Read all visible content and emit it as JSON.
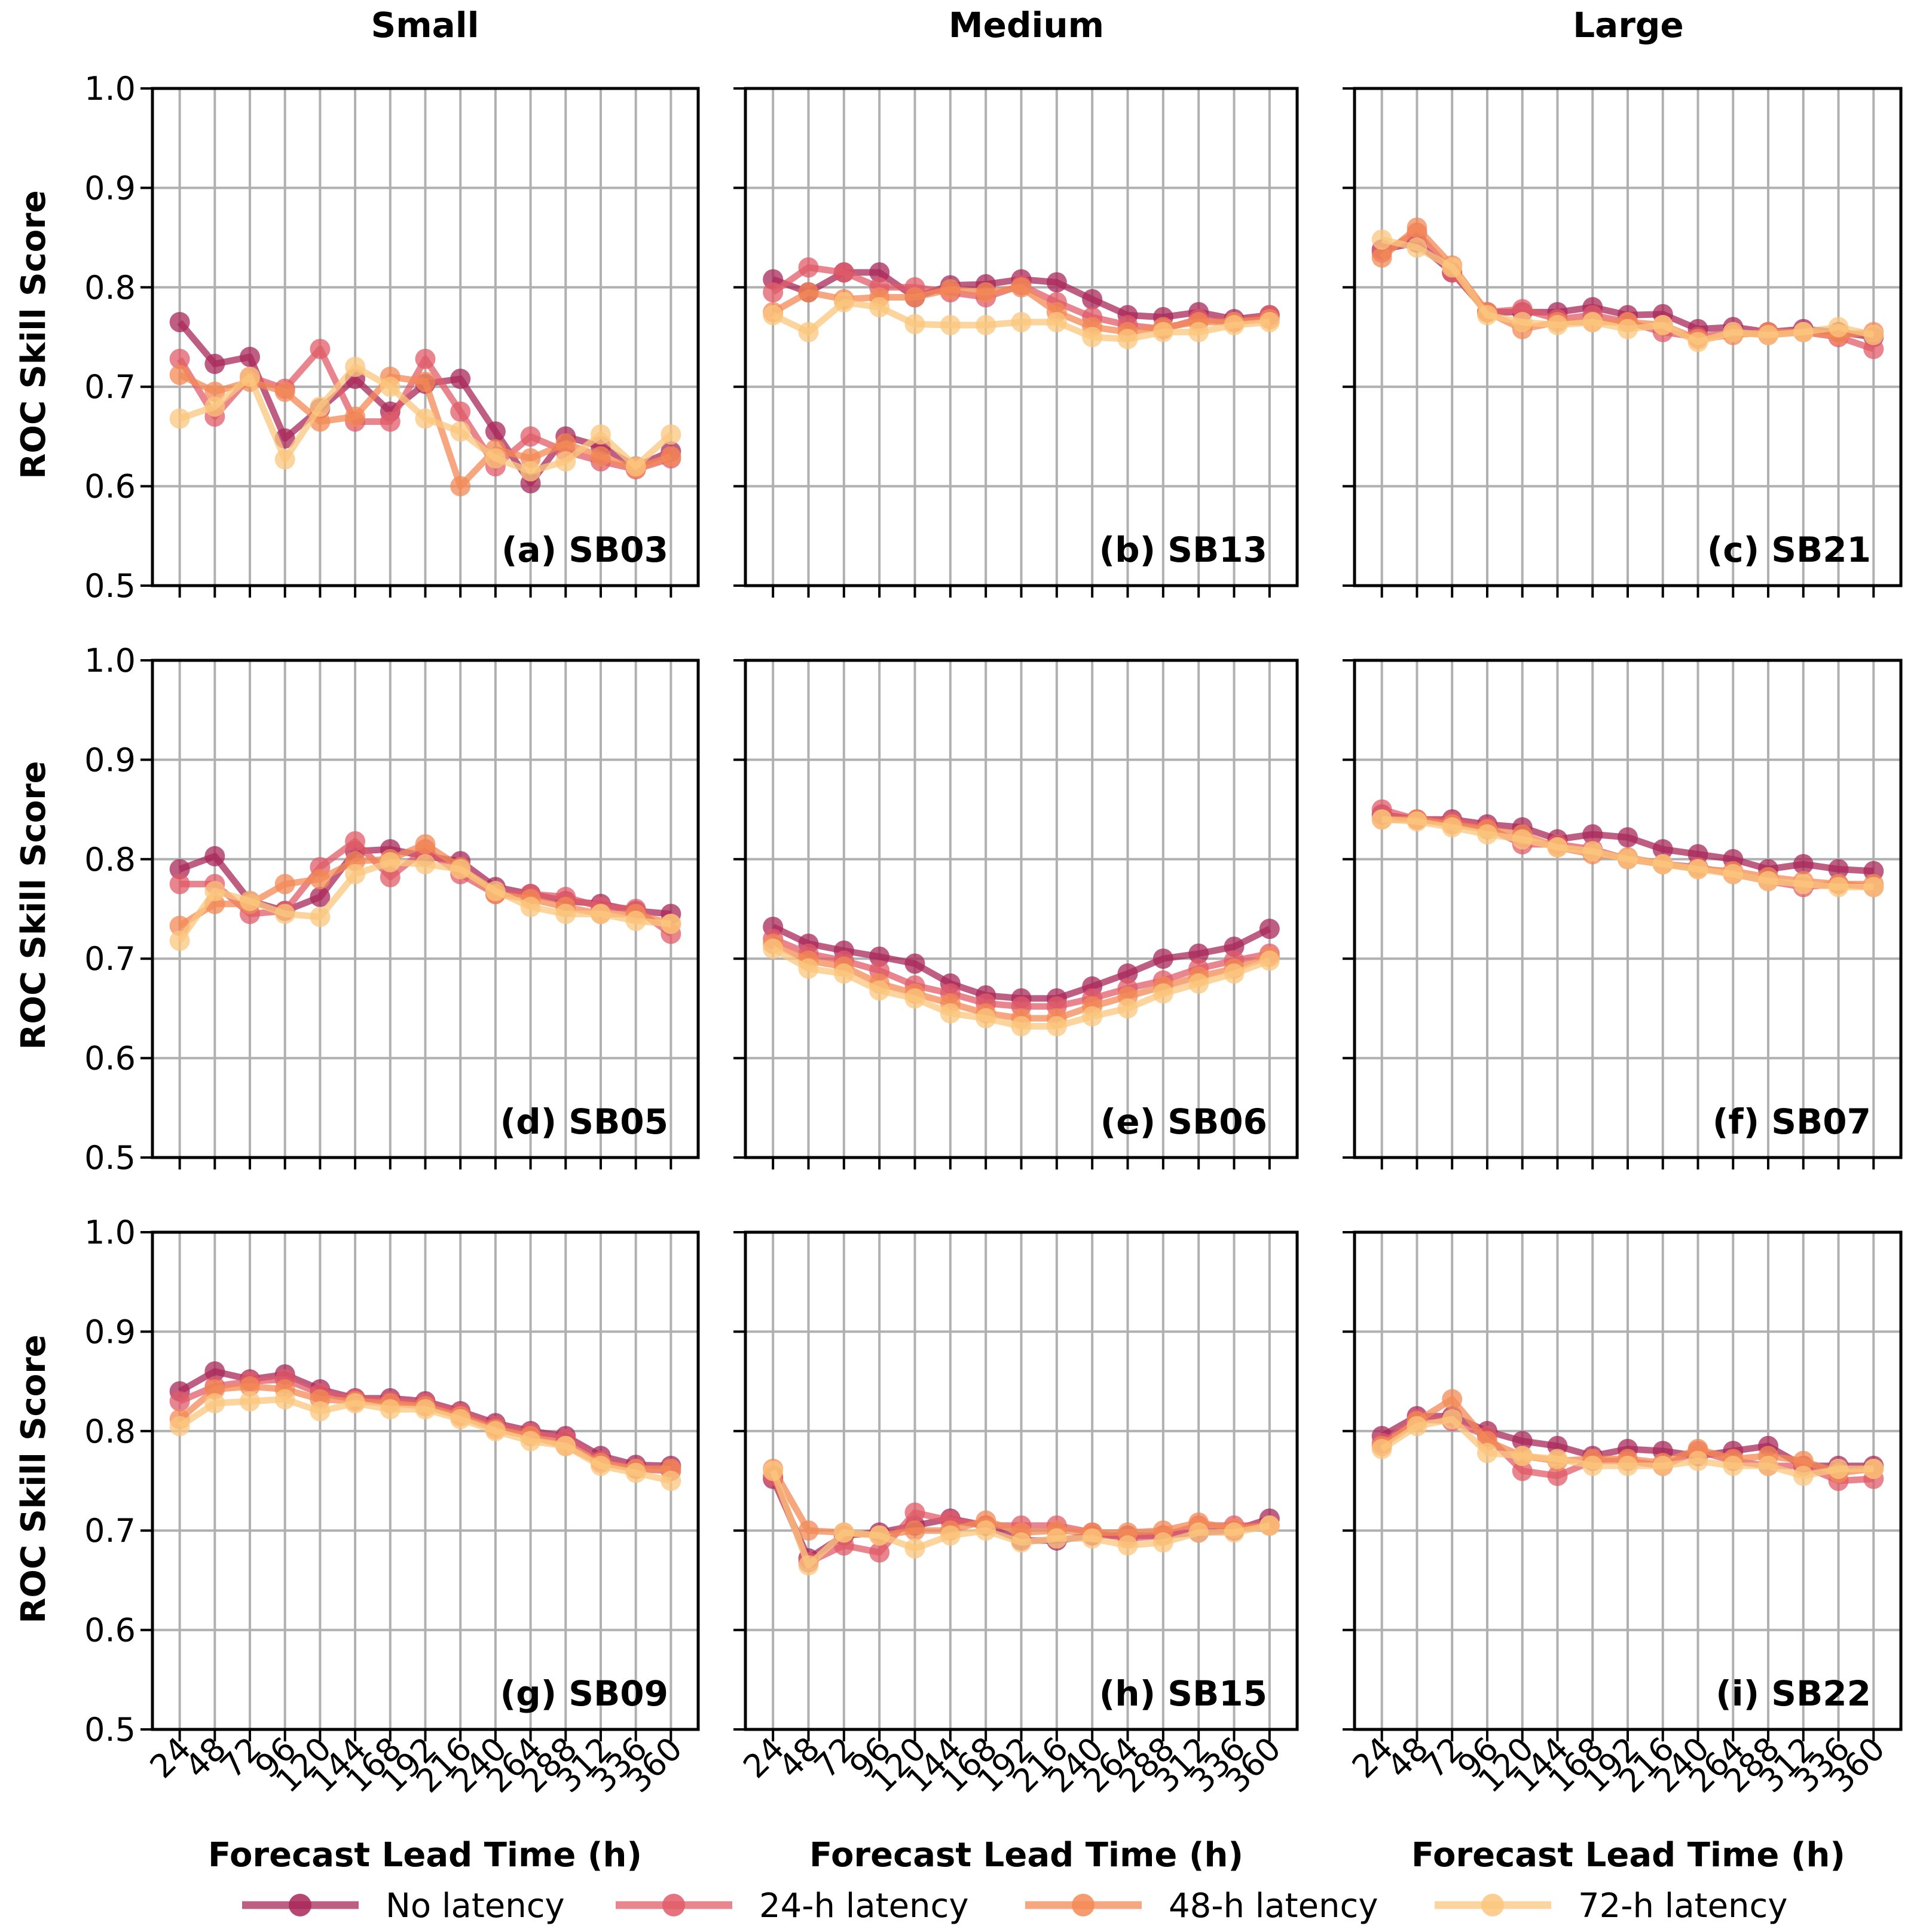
{
  "figure": {
    "column_titles": [
      "Small",
      "Medium",
      "Large"
    ],
    "ylabel": "ROC Skill Score",
    "xlabel": "Forecast Lead Time (h)"
  },
  "legend": [
    {
      "label": "No latency",
      "color": "#a8285a"
    },
    {
      "label": "24-h latency",
      "color": "#e05c68"
    },
    {
      "label": "48-h latency",
      "color": "#f38a55"
    },
    {
      "label": "72-h latency",
      "color": "#fbc77e"
    }
  ],
  "chart_data": [
    {
      "type": "line",
      "label": "(a) SB03",
      "column": "Small",
      "x": [
        24,
        48,
        72,
        96,
        120,
        144,
        168,
        192,
        216,
        240,
        264,
        288,
        312,
        336,
        360
      ],
      "ylim": [
        0.5,
        1.0
      ],
      "yticks": [
        "0.5",
        "0.6",
        "0.7",
        "0.8",
        "0.9",
        "1.0"
      ],
      "grid": true,
      "series": [
        {
          "name": "No latency",
          "values": [
            0.765,
            0.723,
            0.73,
            0.648,
            0.678,
            0.708,
            0.675,
            0.703,
            0.708,
            0.655,
            0.603,
            0.65,
            0.64,
            0.62,
            0.635
          ]
        },
        {
          "name": "24-h latency",
          "values": [
            0.728,
            0.67,
            0.71,
            0.698,
            0.738,
            0.665,
            0.665,
            0.728,
            0.675,
            0.62,
            0.65,
            0.635,
            0.625,
            0.617,
            0.628
          ]
        },
        {
          "name": "48-h latency",
          "values": [
            0.712,
            0.695,
            0.705,
            0.695,
            0.665,
            0.67,
            0.71,
            0.705,
            0.6,
            0.637,
            0.628,
            0.643,
            0.63,
            0.618,
            0.63
          ]
        },
        {
          "name": "72-h latency",
          "values": [
            0.668,
            0.68,
            0.71,
            0.627,
            0.68,
            0.72,
            0.7,
            0.668,
            0.655,
            0.628,
            0.615,
            0.625,
            0.652,
            0.62,
            0.652
          ]
        }
      ]
    },
    {
      "type": "line",
      "label": "(b) SB13",
      "column": "Medium",
      "x": [
        24,
        48,
        72,
        96,
        120,
        144,
        168,
        192,
        216,
        240,
        264,
        288,
        312,
        336,
        360
      ],
      "ylim": [
        0.5,
        1.0
      ],
      "yticks": [
        "0.5",
        "0.6",
        "0.7",
        "0.8",
        "0.9",
        "1.0"
      ],
      "grid": true,
      "series": [
        {
          "name": "No latency",
          "values": [
            0.808,
            0.795,
            0.815,
            0.815,
            0.79,
            0.802,
            0.803,
            0.808,
            0.805,
            0.788,
            0.772,
            0.77,
            0.775,
            0.768,
            0.772
          ]
        },
        {
          "name": "24-h latency",
          "values": [
            0.795,
            0.82,
            0.815,
            0.8,
            0.8,
            0.795,
            0.79,
            0.802,
            0.785,
            0.77,
            0.762,
            0.758,
            0.768,
            0.765,
            0.772
          ]
        },
        {
          "name": "48-h latency",
          "values": [
            0.775,
            0.795,
            0.788,
            0.79,
            0.79,
            0.798,
            0.795,
            0.8,
            0.775,
            0.76,
            0.755,
            0.76,
            0.765,
            0.765,
            0.768
          ]
        },
        {
          "name": "72-h latency",
          "values": [
            0.772,
            0.755,
            0.785,
            0.78,
            0.763,
            0.762,
            0.762,
            0.765,
            0.765,
            0.75,
            0.748,
            0.755,
            0.755,
            0.762,
            0.765
          ]
        }
      ]
    },
    {
      "type": "line",
      "label": "(c) SB21",
      "column": "Large",
      "x": [
        24,
        48,
        72,
        96,
        120,
        144,
        168,
        192,
        216,
        240,
        264,
        288,
        312,
        336,
        360
      ],
      "ylim": [
        0.5,
        1.0
      ],
      "yticks": [
        "0.5",
        "0.6",
        "0.7",
        "0.8",
        "0.9",
        "1.0"
      ],
      "grid": true,
      "series": [
        {
          "name": "No latency",
          "values": [
            0.838,
            0.845,
            0.815,
            0.775,
            0.775,
            0.775,
            0.78,
            0.772,
            0.773,
            0.758,
            0.76,
            0.755,
            0.758,
            0.755,
            0.75
          ]
        },
        {
          "name": "24-h latency",
          "values": [
            0.835,
            0.855,
            0.815,
            0.775,
            0.778,
            0.768,
            0.772,
            0.765,
            0.755,
            0.75,
            0.755,
            0.752,
            0.755,
            0.75,
            0.738
          ]
        },
        {
          "name": "48-h latency",
          "values": [
            0.83,
            0.86,
            0.822,
            0.775,
            0.758,
            0.765,
            0.765,
            0.765,
            0.762,
            0.748,
            0.752,
            0.755,
            0.755,
            0.752,
            0.755
          ]
        },
        {
          "name": "72-h latency",
          "values": [
            0.848,
            0.84,
            0.82,
            0.772,
            0.765,
            0.762,
            0.765,
            0.758,
            0.762,
            0.745,
            0.755,
            0.752,
            0.755,
            0.76,
            0.752
          ]
        }
      ]
    },
    {
      "type": "line",
      "label": "(d) SB05",
      "column": "Small",
      "x": [
        24,
        48,
        72,
        96,
        120,
        144,
        168,
        192,
        216,
        240,
        264,
        288,
        312,
        336,
        360
      ],
      "ylim": [
        0.5,
        1.0
      ],
      "yticks": [
        "0.5",
        "0.6",
        "0.7",
        "0.8",
        "0.9",
        "1.0"
      ],
      "grid": true,
      "series": [
        {
          "name": "No latency",
          "values": [
            0.79,
            0.803,
            0.758,
            0.748,
            0.762,
            0.808,
            0.81,
            0.803,
            0.798,
            0.772,
            0.765,
            0.758,
            0.755,
            0.748,
            0.745
          ]
        },
        {
          "name": "24-h latency",
          "values": [
            0.775,
            0.775,
            0.745,
            0.748,
            0.792,
            0.818,
            0.782,
            0.81,
            0.785,
            0.765,
            0.765,
            0.762,
            0.752,
            0.75,
            0.725
          ]
        },
        {
          "name": "48-h latency",
          "values": [
            0.733,
            0.755,
            0.755,
            0.775,
            0.78,
            0.798,
            0.8,
            0.815,
            0.792,
            0.765,
            0.76,
            0.752,
            0.745,
            0.745,
            0.735
          ]
        },
        {
          "name": "72-h latency",
          "values": [
            0.718,
            0.768,
            0.758,
            0.745,
            0.742,
            0.785,
            0.797,
            0.795,
            0.79,
            0.768,
            0.752,
            0.745,
            0.745,
            0.738,
            0.735
          ]
        }
      ]
    },
    {
      "type": "line",
      "label": "(e) SB06",
      "column": "Medium",
      "x": [
        24,
        48,
        72,
        96,
        120,
        144,
        168,
        192,
        216,
        240,
        264,
        288,
        312,
        336,
        360
      ],
      "ylim": [
        0.5,
        1.0
      ],
      "yticks": [
        "0.5",
        "0.6",
        "0.7",
        "0.8",
        "0.9",
        "1.0"
      ],
      "grid": true,
      "series": [
        {
          "name": "No latency",
          "values": [
            0.732,
            0.715,
            0.708,
            0.702,
            0.695,
            0.675,
            0.663,
            0.66,
            0.66,
            0.672,
            0.685,
            0.7,
            0.705,
            0.712,
            0.73
          ]
        },
        {
          "name": "24-h latency",
          "values": [
            0.72,
            0.705,
            0.698,
            0.688,
            0.673,
            0.665,
            0.655,
            0.652,
            0.652,
            0.66,
            0.67,
            0.678,
            0.69,
            0.698,
            0.705
          ]
        },
        {
          "name": "48-h latency",
          "values": [
            0.715,
            0.698,
            0.692,
            0.675,
            0.665,
            0.655,
            0.645,
            0.64,
            0.64,
            0.652,
            0.662,
            0.672,
            0.682,
            0.69,
            0.702
          ]
        },
        {
          "name": "72-h latency",
          "values": [
            0.71,
            0.69,
            0.685,
            0.668,
            0.66,
            0.645,
            0.64,
            0.632,
            0.632,
            0.642,
            0.65,
            0.665,
            0.675,
            0.685,
            0.698
          ]
        }
      ]
    },
    {
      "type": "line",
      "label": "(f) SB07",
      "column": "Large",
      "x": [
        24,
        48,
        72,
        96,
        120,
        144,
        168,
        192,
        216,
        240,
        264,
        288,
        312,
        336,
        360
      ],
      "ylim": [
        0.5,
        1.0
      ],
      "yticks": [
        "0.5",
        "0.6",
        "0.7",
        "0.8",
        "0.9",
        "1.0"
      ],
      "grid": true,
      "series": [
        {
          "name": "No latency",
          "values": [
            0.845,
            0.84,
            0.84,
            0.835,
            0.832,
            0.82,
            0.825,
            0.822,
            0.81,
            0.805,
            0.8,
            0.79,
            0.795,
            0.79,
            0.788
          ]
        },
        {
          "name": "24-h latency",
          "values": [
            0.85,
            0.84,
            0.838,
            0.832,
            0.815,
            0.815,
            0.81,
            0.8,
            0.795,
            0.792,
            0.785,
            0.778,
            0.772,
            0.775,
            0.772
          ]
        },
        {
          "name": "48-h latency",
          "values": [
            0.84,
            0.84,
            0.835,
            0.83,
            0.825,
            0.812,
            0.805,
            0.802,
            0.795,
            0.79,
            0.788,
            0.782,
            0.778,
            0.775,
            0.775
          ]
        },
        {
          "name": "72-h latency",
          "values": [
            0.84,
            0.838,
            0.832,
            0.825,
            0.82,
            0.812,
            0.808,
            0.8,
            0.795,
            0.79,
            0.785,
            0.778,
            0.775,
            0.772,
            0.772
          ]
        }
      ]
    },
    {
      "type": "line",
      "label": "(g) SB09",
      "column": "Small",
      "x": [
        24,
        48,
        72,
        96,
        120,
        144,
        168,
        192,
        216,
        240,
        264,
        288,
        312,
        336,
        360
      ],
      "ylim": [
        0.5,
        1.0
      ],
      "yticks": [
        "0.5",
        "0.6",
        "0.7",
        "0.8",
        "0.9",
        "1.0"
      ],
      "grid": true,
      "series": [
        {
          "name": "No latency",
          "values": [
            0.84,
            0.86,
            0.852,
            0.857,
            0.842,
            0.833,
            0.833,
            0.83,
            0.82,
            0.808,
            0.8,
            0.795,
            0.775,
            0.766,
            0.765
          ]
        },
        {
          "name": "24-h latency",
          "values": [
            0.83,
            0.845,
            0.85,
            0.852,
            0.838,
            0.832,
            0.83,
            0.828,
            0.818,
            0.805,
            0.798,
            0.792,
            0.77,
            0.762,
            0.76
          ]
        },
        {
          "name": "48-h latency",
          "values": [
            0.812,
            0.842,
            0.845,
            0.842,
            0.832,
            0.83,
            0.828,
            0.825,
            0.815,
            0.802,
            0.795,
            0.785,
            0.768,
            0.762,
            0.762
          ]
        },
        {
          "name": "72-h latency",
          "values": [
            0.805,
            0.828,
            0.83,
            0.832,
            0.82,
            0.828,
            0.822,
            0.822,
            0.812,
            0.8,
            0.79,
            0.785,
            0.765,
            0.758,
            0.75
          ]
        }
      ]
    },
    {
      "type": "line",
      "label": "(h) SB15",
      "column": "Medium",
      "x": [
        24,
        48,
        72,
        96,
        120,
        144,
        168,
        192,
        216,
        240,
        264,
        288,
        312,
        336,
        360
      ],
      "ylim": [
        0.5,
        1.0
      ],
      "yticks": [
        "0.5",
        "0.6",
        "0.7",
        "0.8",
        "0.9",
        "1.0"
      ],
      "grid": true,
      "series": [
        {
          "name": "No latency",
          "values": [
            0.752,
            0.672,
            0.695,
            0.698,
            0.705,
            0.712,
            0.705,
            0.69,
            0.69,
            0.695,
            0.695,
            0.695,
            0.698,
            0.7,
            0.712
          ]
        },
        {
          "name": "24-h latency",
          "values": [
            0.755,
            0.668,
            0.685,
            0.678,
            0.718,
            0.71,
            0.705,
            0.705,
            0.705,
            0.698,
            0.692,
            0.695,
            0.705,
            0.705,
            0.705
          ]
        },
        {
          "name": "48-h latency",
          "values": [
            0.762,
            0.7,
            0.698,
            0.695,
            0.7,
            0.7,
            0.71,
            0.698,
            0.7,
            0.698,
            0.698,
            0.7,
            0.708,
            0.702,
            0.705
          ]
        },
        {
          "name": "72-h latency",
          "values": [
            0.76,
            0.665,
            0.698,
            0.695,
            0.682,
            0.695,
            0.7,
            0.688,
            0.692,
            0.692,
            0.685,
            0.688,
            0.698,
            0.698,
            0.705
          ]
        }
      ]
    },
    {
      "type": "line",
      "label": "(i) SB22",
      "column": "Large",
      "x": [
        24,
        48,
        72,
        96,
        120,
        144,
        168,
        192,
        216,
        240,
        264,
        288,
        312,
        336,
        360
      ],
      "ylim": [
        0.5,
        1.0
      ],
      "yticks": [
        "0.5",
        "0.6",
        "0.7",
        "0.8",
        "0.9",
        "1.0"
      ],
      "grid": true,
      "series": [
        {
          "name": "No latency",
          "values": [
            0.795,
            0.815,
            0.815,
            0.8,
            0.79,
            0.785,
            0.775,
            0.782,
            0.78,
            0.775,
            0.78,
            0.785,
            0.765,
            0.765,
            0.765
          ]
        },
        {
          "name": "24-h latency",
          "values": [
            0.788,
            0.812,
            0.81,
            0.795,
            0.76,
            0.755,
            0.77,
            0.77,
            0.765,
            0.78,
            0.77,
            0.765,
            0.765,
            0.75,
            0.752
          ]
        },
        {
          "name": "48-h latency",
          "values": [
            0.785,
            0.81,
            0.832,
            0.79,
            0.775,
            0.77,
            0.772,
            0.772,
            0.768,
            0.782,
            0.772,
            0.775,
            0.77,
            0.758,
            0.762
          ]
        },
        {
          "name": "72-h latency",
          "values": [
            0.782,
            0.805,
            0.812,
            0.778,
            0.775,
            0.772,
            0.765,
            0.765,
            0.765,
            0.77,
            0.765,
            0.765,
            0.755,
            0.762,
            0.762
          ]
        }
      ]
    }
  ]
}
